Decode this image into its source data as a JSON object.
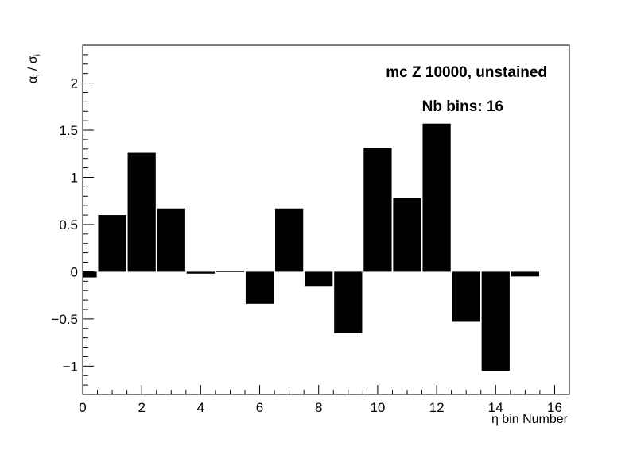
{
  "chart_data": {
    "type": "bar",
    "title": "",
    "xlabel": "η bin Number",
    "ylabel": "α_i / σ_i",
    "ylabel_main": "α",
    "ylabel_sub": "i",
    "ylabel_sep": " / σ",
    "ylabel_sub2": "i",
    "xlim": [
      0,
      16.5
    ],
    "ylim": [
      -1.3,
      2.4
    ],
    "x_ticks": [
      0,
      2,
      4,
      6,
      8,
      10,
      12,
      14,
      16
    ],
    "y_ticks": [
      -1,
      -0.5,
      0,
      0.5,
      1,
      1.5,
      2
    ],
    "x_tick_labels": [
      "0",
      "2",
      "4",
      "6",
      "8",
      "10",
      "12",
      "14",
      "16"
    ],
    "y_tick_labels": [
      "−1",
      "−0.5",
      "0",
      "0.5",
      "1",
      "1.5",
      "2"
    ],
    "bar_width": 0.95,
    "x": [
      0,
      1,
      2,
      3,
      4,
      5,
      6,
      7,
      8,
      9,
      10,
      11,
      12,
      13,
      14,
      15
    ],
    "values": [
      -0.06,
      0.6,
      1.26,
      0.67,
      -0.02,
      0.01,
      -0.34,
      0.67,
      -0.15,
      -0.65,
      1.31,
      0.78,
      1.57,
      -0.53,
      -1.05,
      -0.05
    ],
    "bar_color": "#000000",
    "annotations": [
      "mc Z 10000, unstained",
      "Nb bins: 16"
    ]
  }
}
